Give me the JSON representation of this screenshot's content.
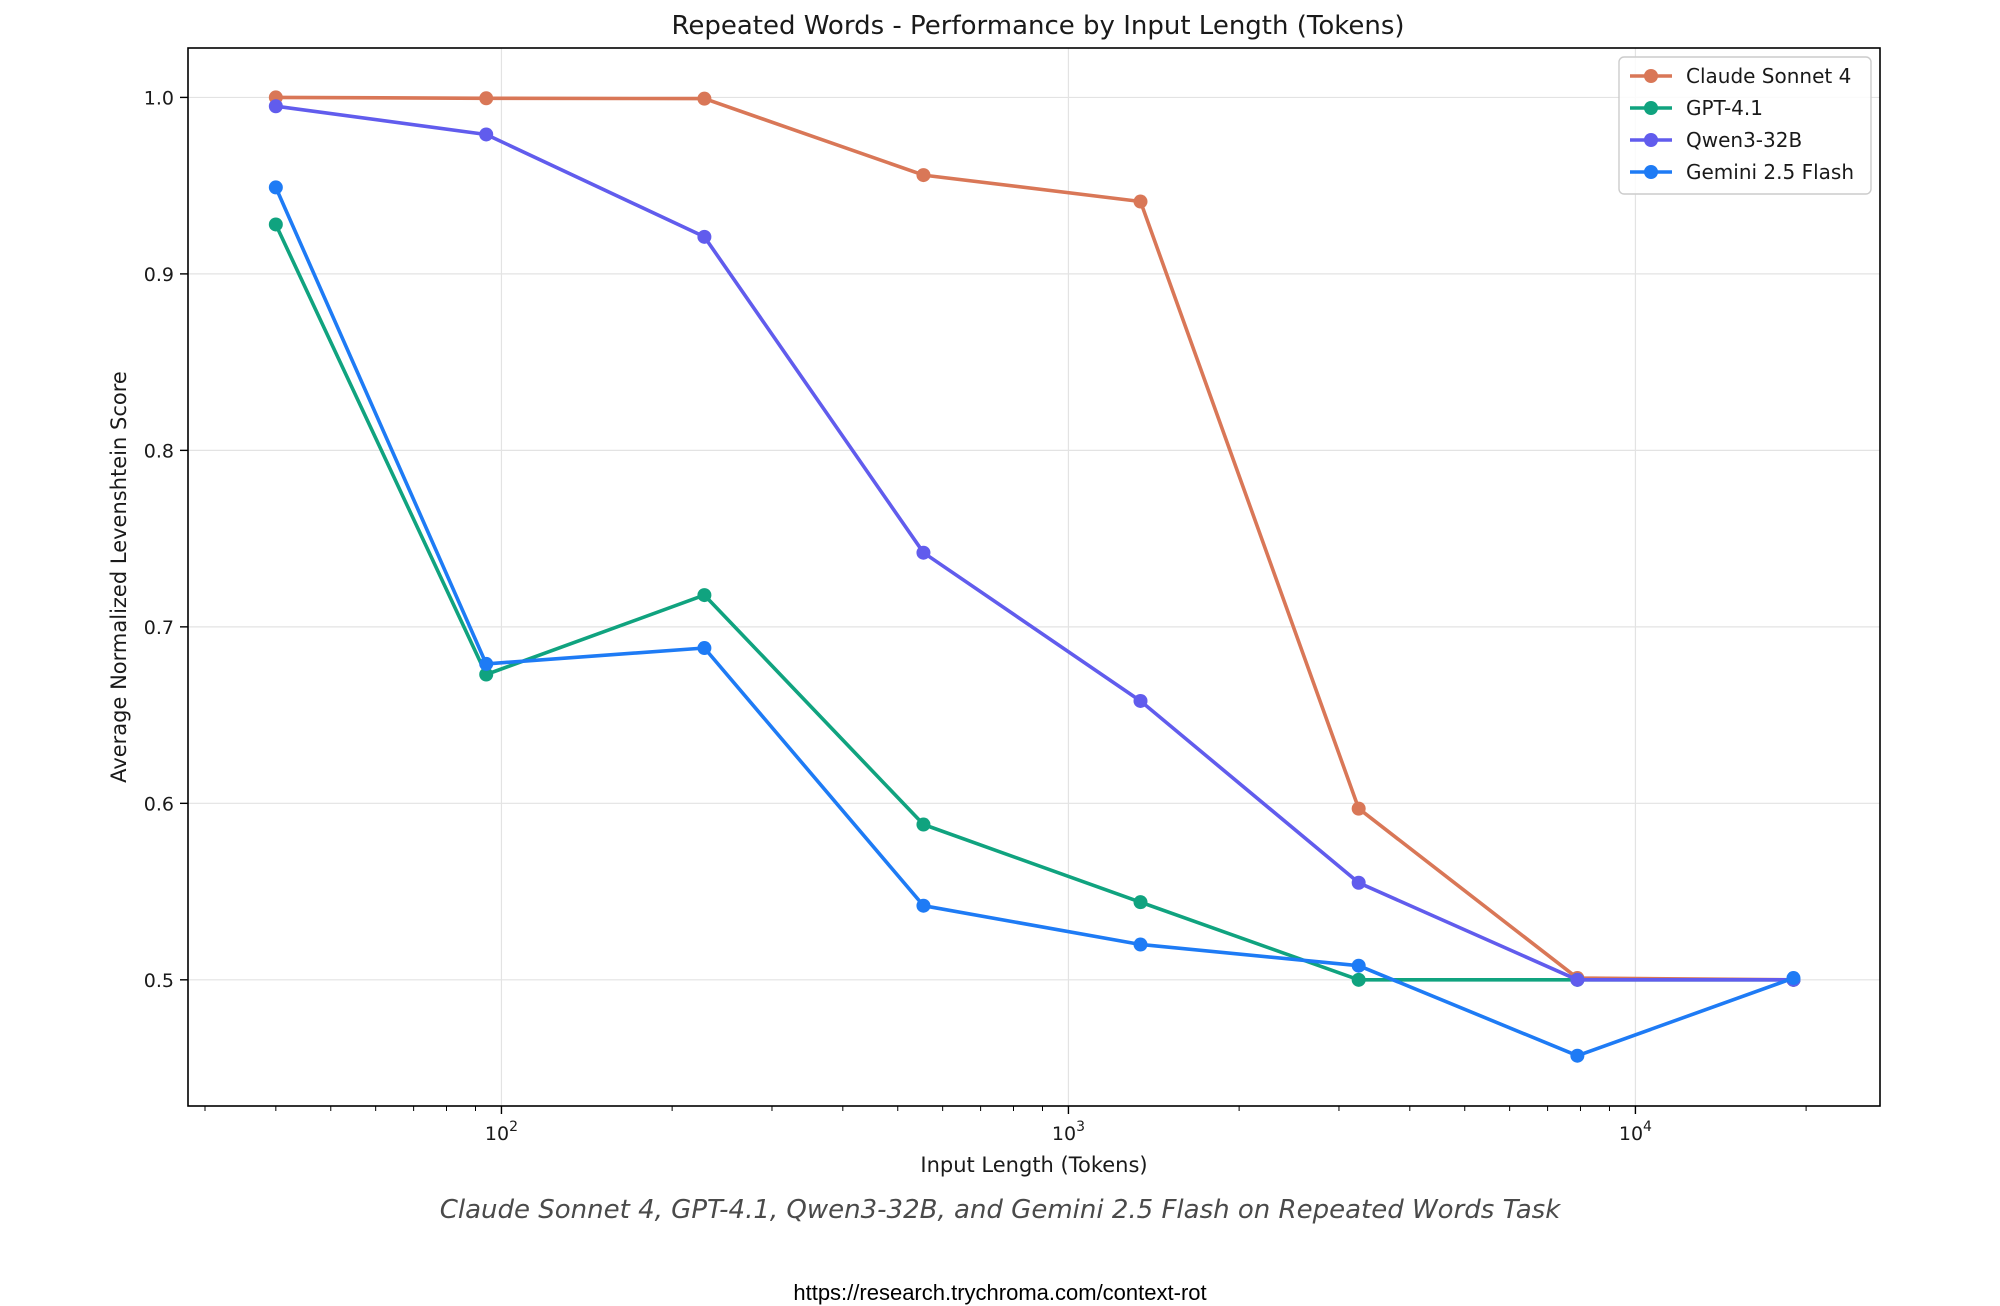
{
  "chart_data": {
    "type": "line",
    "title": "Repeated Words - Performance by Input Length (Tokens)",
    "xlabel": "Input Length (Tokens)",
    "ylabel": "Average Normalized Levenshtein Score",
    "xscale": "log",
    "xlim": [
      28,
      27000
    ],
    "ylim": [
      0.4285,
      1.028
    ],
    "grid": true,
    "legend_position": "top-right",
    "x": [
      40,
      94,
      228,
      555,
      1340,
      3250,
      7900,
      19000
    ],
    "y_ticks": [
      0.5,
      0.6,
      0.7,
      0.8,
      0.9,
      1.0
    ],
    "y_tick_labels": [
      "0.5",
      "0.6",
      "0.7",
      "0.8",
      "0.9",
      "1.0"
    ],
    "x_ticks": [
      100,
      1000,
      10000
    ],
    "x_tick_labels": [
      {
        "base": "10",
        "exp": "2"
      },
      {
        "base": "10",
        "exp": "3"
      },
      {
        "base": "10",
        "exp": "4"
      }
    ],
    "series": [
      {
        "name": "Claude Sonnet 4",
        "color": "#d97757",
        "values": [
          1.0,
          0.9995,
          0.9993,
          0.956,
          0.941,
          0.597,
          0.501,
          0.5
        ]
      },
      {
        "name": "GPT-4.1",
        "color": "#10a37f",
        "values": [
          0.928,
          0.673,
          0.718,
          0.588,
          0.544,
          0.5,
          0.5,
          0.5
        ]
      },
      {
        "name": "Qwen3-32B",
        "color": "#615ced",
        "values": [
          0.995,
          0.979,
          0.921,
          0.742,
          0.658,
          0.555,
          0.5,
          0.5
        ]
      },
      {
        "name": "Gemini 2.5 Flash",
        "color": "#1e7bf5",
        "values": [
          0.949,
          0.679,
          0.688,
          0.542,
          0.52,
          0.508,
          0.457,
          0.501
        ]
      }
    ]
  },
  "caption": "Claude Sonnet 4, GPT-4.1, Qwen3-32B, and Gemini 2.5 Flash on Repeated Words Task",
  "source_url": "https://research.trychroma.com/context-rot"
}
